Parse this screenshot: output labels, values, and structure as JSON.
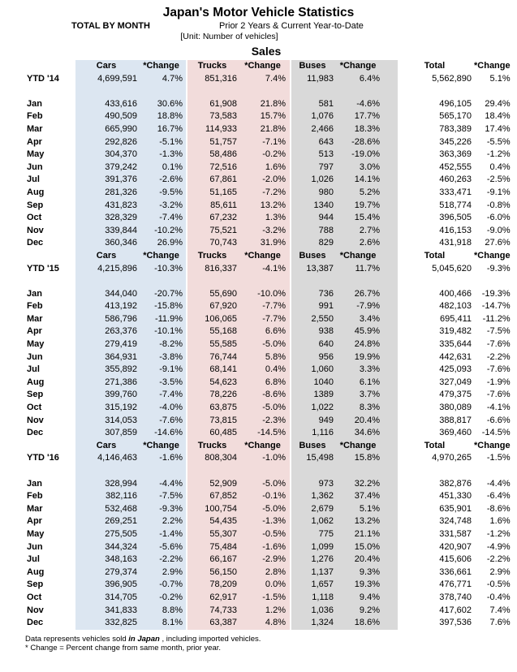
{
  "header": {
    "title": "Japan's Motor Vehicle Statistics",
    "subtitle_left": "TOTAL BY MONTH",
    "subtitle_right": "Prior 2 Years & Current Year-to-Date",
    "unit": "[Unit: Number of vehicles]",
    "section_title": "Sales"
  },
  "columns": [
    "Cars",
    "*Change",
    "Trucks",
    "*Change",
    "Buses",
    "*Change",
    "Total",
    "*Change"
  ],
  "colors": {
    "cars_bg": "#dce6f1",
    "trucks_bg": "#f2dcdb",
    "buses_bg": "#d9d9d9",
    "text": "#000000"
  },
  "sections": [
    {
      "ytd_label": "YTD '14",
      "ytd": [
        "4,699,591",
        "4.7%",
        "851,316",
        "7.4%",
        "11,983",
        "6.4%",
        "5,562,890",
        "5.1%"
      ],
      "rows": [
        {
          "month": "Jan",
          "values": [
            "433,616",
            "30.6%",
            "61,908",
            "21.8%",
            "581",
            "-4.6%",
            "496,105",
            "29.4%"
          ]
        },
        {
          "month": "Feb",
          "values": [
            "490,509",
            "18.8%",
            "73,583",
            "15.7%",
            "1,076",
            "17.7%",
            "565,170",
            "18.4%"
          ]
        },
        {
          "month": "Mar",
          "values": [
            "665,990",
            "16.7%",
            "114,933",
            "21.8%",
            "2,466",
            "18.3%",
            "783,389",
            "17.4%"
          ]
        },
        {
          "month": "Apr",
          "values": [
            "292,826",
            "-5.1%",
            "51,757",
            "-7.1%",
            "643",
            "-28.6%",
            "345,226",
            "-5.5%"
          ]
        },
        {
          "month": "May",
          "values": [
            "304,370",
            "-1.3%",
            "58,486",
            "-0.2%",
            "513",
            "-19.0%",
            "363,369",
            "-1.2%"
          ]
        },
        {
          "month": "Jun",
          "values": [
            "379,242",
            "0.1%",
            "72,516",
            "1.6%",
            "797",
            "3.0%",
            "452,555",
            "0.4%"
          ]
        },
        {
          "month": "Jul",
          "values": [
            "391,376",
            "-2.6%",
            "67,861",
            "-2.0%",
            "1,026",
            "14.1%",
            "460,263",
            "-2.5%"
          ]
        },
        {
          "month": "Aug",
          "values": [
            "281,326",
            "-9.5%",
            "51,165",
            "-7.2%",
            "980",
            "5.2%",
            "333,471",
            "-9.1%"
          ]
        },
        {
          "month": "Sep",
          "values": [
            "431,823",
            "-3.2%",
            "85,611",
            "13.2%",
            "1340",
            "19.7%",
            "518,774",
            "-0.8%"
          ]
        },
        {
          "month": "Oct",
          "values": [
            "328,329",
            "-7.4%",
            "67,232",
            "1.3%",
            "944",
            "15.4%",
            "396,505",
            "-6.0%"
          ]
        },
        {
          "month": "Nov",
          "values": [
            "339,844",
            "-10.2%",
            "75,521",
            "-3.2%",
            "788",
            "2.7%",
            "416,153",
            "-9.0%"
          ]
        },
        {
          "month": "Dec",
          "values": [
            "360,346",
            "26.9%",
            "70,743",
            "31.9%",
            "829",
            "2.6%",
            "431,918",
            "27.6%"
          ]
        }
      ]
    },
    {
      "ytd_label": "YTD '15",
      "ytd": [
        "4,215,896",
        "-10.3%",
        "816,337",
        "-4.1%",
        "13,387",
        "11.7%",
        "5,045,620",
        "-9.3%"
      ],
      "rows": [
        {
          "month": "Jan",
          "values": [
            "344,040",
            "-20.7%",
            "55,690",
            "-10.0%",
            "736",
            "26.7%",
            "400,466",
            "-19.3%"
          ]
        },
        {
          "month": "Feb",
          "values": [
            "413,192",
            "-15.8%",
            "67,920",
            "-7.7%",
            "991",
            "-7.9%",
            "482,103",
            "-14.7%"
          ]
        },
        {
          "month": "Mar",
          "values": [
            "586,796",
            "-11.9%",
            "106,065",
            "-7.7%",
            "2,550",
            "3.4%",
            "695,411",
            "-11.2%"
          ]
        },
        {
          "month": "Apr",
          "values": [
            "263,376",
            "-10.1%",
            "55,168",
            "6.6%",
            "938",
            "45.9%",
            "319,482",
            "-7.5%"
          ]
        },
        {
          "month": "May",
          "values": [
            "279,419",
            "-8.2%",
            "55,585",
            "-5.0%",
            "640",
            "24.8%",
            "335,644",
            "-7.6%"
          ]
        },
        {
          "month": "Jun",
          "values": [
            "364,931",
            "-3.8%",
            "76,744",
            "5.8%",
            "956",
            "19.9%",
            "442,631",
            "-2.2%"
          ]
        },
        {
          "month": "Jul",
          "values": [
            "355,892",
            "-9.1%",
            "68,141",
            "0.4%",
            "1,060",
            "3.3%",
            "425,093",
            "-7.6%"
          ]
        },
        {
          "month": "Aug",
          "values": [
            "271,386",
            "-3.5%",
            "54,623",
            "6.8%",
            "1040",
            "6.1%",
            "327,049",
            "-1.9%"
          ]
        },
        {
          "month": "Sep",
          "values": [
            "399,760",
            "-7.4%",
            "78,226",
            "-8.6%",
            "1389",
            "3.7%",
            "479,375",
            "-7.6%"
          ]
        },
        {
          "month": "Oct",
          "values": [
            "315,192",
            "-4.0%",
            "63,875",
            "-5.0%",
            "1,022",
            "8.3%",
            "380,089",
            "-4.1%"
          ]
        },
        {
          "month": "Nov",
          "values": [
            "314,053",
            "-7.6%",
            "73,815",
            "-2.3%",
            "949",
            "20.4%",
            "388,817",
            "-6.6%"
          ]
        },
        {
          "month": "Dec",
          "values": [
            "307,859",
            "-14.6%",
            "60,485",
            "-14.5%",
            "1,116",
            "34.6%",
            "369,460",
            "-14.5%"
          ]
        }
      ]
    },
    {
      "ytd_label": "YTD '16",
      "ytd": [
        "4,146,463",
        "-1.6%",
        "808,304",
        "-1.0%",
        "15,498",
        "15.8%",
        "4,970,265",
        "-1.5%"
      ],
      "rows": [
        {
          "month": "Jan",
          "values": [
            "328,994",
            "-4.4%",
            "52,909",
            "-5.0%",
            "973",
            "32.2%",
            "382,876",
            "-4.4%"
          ]
        },
        {
          "month": "Feb",
          "values": [
            "382,116",
            "-7.5%",
            "67,852",
            "-0.1%",
            "1,362",
            "37.4%",
            "451,330",
            "-6.4%"
          ]
        },
        {
          "month": "Mar",
          "values": [
            "532,468",
            "-9.3%",
            "100,754",
            "-5.0%",
            "2,679",
            "5.1%",
            "635,901",
            "-8.6%"
          ]
        },
        {
          "month": "Apr",
          "values": [
            "269,251",
            "2.2%",
            "54,435",
            "-1.3%",
            "1,062",
            "13.2%",
            "324,748",
            "1.6%"
          ]
        },
        {
          "month": "May",
          "values": [
            "275,505",
            "-1.4%",
            "55,307",
            "-0.5%",
            "775",
            "21.1%",
            "331,587",
            "-1.2%"
          ]
        },
        {
          "month": "Jun",
          "values": [
            "344,324",
            "-5.6%",
            "75,484",
            "-1.6%",
            "1,099",
            "15.0%",
            "420,907",
            "-4.9%"
          ]
        },
        {
          "month": "Jul",
          "values": [
            "348,163",
            "-2.2%",
            "66,167",
            "-2.9%",
            "1,276",
            "20.4%",
            "415,606",
            "-2.2%"
          ]
        },
        {
          "month": "Aug",
          "values": [
            "279,374",
            "2.9%",
            "56,150",
            "2.8%",
            "1,137",
            "9.3%",
            "336,661",
            "2.9%"
          ]
        },
        {
          "month": "Sep",
          "values": [
            "396,905",
            "-0.7%",
            "78,209",
            "0.0%",
            "1,657",
            "19.3%",
            "476,771",
            "-0.5%"
          ]
        },
        {
          "month": "Oct",
          "values": [
            "314,705",
            "-0.2%",
            "62,917",
            "-1.5%",
            "1,118",
            "9.4%",
            "378,740",
            "-0.4%"
          ]
        },
        {
          "month": "Nov",
          "values": [
            "341,833",
            "8.8%",
            "74,733",
            "1.2%",
            "1,036",
            "9.2%",
            "417,602",
            "7.4%"
          ]
        },
        {
          "month": "Dec",
          "values": [
            "332,825",
            "8.1%",
            "63,387",
            "4.8%",
            "1,324",
            "18.6%",
            "397,536",
            "7.6%"
          ]
        }
      ]
    }
  ],
  "footnotes": {
    "line1_prefix": "Data represents vehicles sold ",
    "line1_emphasis": "in Japan",
    "line1_suffix": " , including imported vehicles.",
    "line2": "* Change = Percent change from same month, prior year."
  }
}
